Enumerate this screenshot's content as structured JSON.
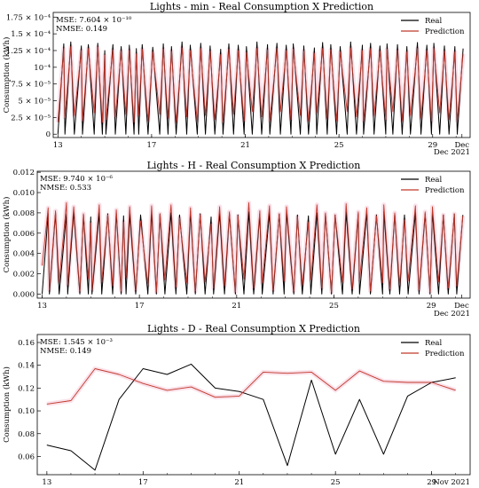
{
  "chart_data": [
    {
      "type": "line",
      "title": "Lights - min - Real Consumption X Prediction",
      "ylabel": "Consumption (kWh)",
      "xlabel": "",
      "x_ticks": [
        "13",
        "17",
        "21",
        "25",
        "29",
        "Dec"
      ],
      "x_sublabel": "Dec 2021",
      "x_domain": [
        12.8,
        30.6
      ],
      "y_ticks": [
        "0",
        "2.5 × 10⁻⁵",
        "5 × 10⁻⁵",
        "7.5 × 10⁻⁵",
        "10⁻⁴",
        "1.25 × 10⁻⁴",
        "1.5 × 10⁻⁴",
        "1.75 × 10⁻⁴"
      ],
      "y_tick_values": [
        0,
        2.5e-05,
        5e-05,
        7.5e-05,
        0.0001,
        0.000125,
        0.00015,
        0.000175
      ],
      "ylim": [
        -5e-06,
        0.000182
      ],
      "metrics": {
        "mse": "MSE: 7.604 × 10⁻¹⁰",
        "nmse": "NMSE: 0.149"
      },
      "legend_position": "top-right",
      "series": [
        {
          "name": "Real",
          "color": "#000000",
          "x": [
            13.0,
            13.25,
            13.3,
            13.55,
            13.7,
            14.0,
            14.05,
            14.3,
            14.55,
            14.7,
            14.9,
            15.0,
            15.05,
            15.35,
            15.45,
            15.7,
            15.9,
            16.05,
            16.25,
            16.35,
            16.45,
            16.6,
            16.85,
            17.05,
            17.35,
            17.5,
            17.7,
            17.85,
            18.05,
            18.3,
            18.5,
            18.65,
            18.95,
            19.1,
            19.3,
            19.5,
            19.7,
            19.95,
            20.05,
            20.3,
            20.5,
            20.7,
            20.95,
            21.05,
            21.3,
            21.5,
            21.7,
            21.95,
            22.05,
            22.35,
            22.5,
            22.75,
            22.95,
            23.05,
            23.35,
            23.5,
            23.7,
            23.95,
            24.05,
            24.3,
            24.5,
            24.65,
            24.9,
            25.05,
            25.35,
            25.5,
            25.75,
            26.0,
            26.05,
            26.35,
            26.5,
            26.75,
            27.0,
            27.05,
            27.3,
            27.5,
            27.7,
            27.9,
            28.05,
            28.35,
            28.5,
            28.75,
            28.95,
            29.05,
            29.3,
            29.5,
            29.7,
            29.95,
            30.05,
            30.3
          ],
          "y": [
            0,
            0.000135,
            0,
            0.000138,
            0,
            0.000132,
            0,
            0.000134,
            0,
            0.000136,
            0,
            0.000125,
            0,
            0.000134,
            0,
            0.000131,
            0,
            0.000133,
            0,
            0.000128,
            0,
            0.000134,
            0,
            0.00013,
            0,
            0.000135,
            0,
            0.000131,
            0,
            0.000138,
            0,
            0.000133,
            0,
            0.000136,
            0,
            0.000132,
            0,
            0.000127,
            0,
            0.000135,
            0,
            0.000133,
            0,
            0.000131,
            0,
            0.000138,
            0,
            0.000134,
            0,
            0.000136,
            0,
            0.000133,
            0,
            0.000135,
            0,
            0.000132,
            0,
            0.000129,
            0,
            0.000137,
            0,
            0.000134,
            0,
            0.000131,
            0,
            0.000138,
            0,
            0.000133,
            0,
            0.000136,
            0,
            0.000132,
            0,
            0.000135,
            0,
            0.000134,
            0,
            0.000131,
            0,
            0.000137,
            0,
            0.000133,
            0,
            0.000136,
            0,
            0.000132,
            0,
            0.000131,
            0,
            0.000128
          ]
        },
        {
          "name": "Prediction",
          "color": "#c0392b",
          "x": [
            13.0,
            13.25,
            13.3,
            13.55,
            13.7,
            14.0,
            14.05,
            14.3,
            14.55,
            14.7,
            14.9,
            15.0,
            15.05,
            15.35,
            15.45,
            15.7,
            15.9,
            16.05,
            16.25,
            16.35,
            16.45,
            16.6,
            16.85,
            17.05,
            17.35,
            17.5,
            17.7,
            17.85,
            18.05,
            18.3,
            18.5,
            18.65,
            18.95,
            19.1,
            19.3,
            19.5,
            19.7,
            19.95,
            20.05,
            20.3,
            20.5,
            20.7,
            20.95,
            21.05,
            21.3,
            21.5,
            21.7,
            21.95,
            22.05,
            22.35,
            22.5,
            22.75,
            22.95,
            23.05,
            23.35,
            23.5,
            23.7,
            23.95,
            24.05,
            24.3,
            24.5,
            24.65,
            24.9,
            25.05,
            25.35,
            25.5,
            25.75,
            26.0,
            26.05,
            26.35,
            26.5,
            26.75,
            27.0,
            27.05,
            27.3,
            27.5,
            27.7,
            27.9,
            28.05,
            28.35,
            28.5,
            28.75,
            28.95,
            29.05,
            29.3,
            29.5,
            29.7,
            29.95,
            30.05,
            30.3
          ],
          "y": [
            1.8e-05,
            0.000128,
            2.5e-05,
            0.000131,
            2.8e-05,
            0.000125,
            2e-05,
            0.000128,
            3.2e-05,
            0.00013,
            1.8e-05,
            0.000118,
            2.2e-05,
            0.000126,
            2.6e-05,
            0.000124,
            3e-05,
            0.000125,
            1.8e-05,
            0.00012,
            2.8e-05,
            0.000127,
            2e-05,
            0.000123,
            3e-05,
            0.000127,
            2.4e-05,
            0.000124,
            1.8e-05,
            0.000129,
            2.6e-05,
            0.000125,
            2e-05,
            0.000128,
            2.8e-05,
            0.000124,
            2.2e-05,
            0.000119,
            1.8e-05,
            0.000127,
            3e-05,
            0.000125,
            2e-05,
            0.000122,
            3.4e-05,
            0.000128,
            2.6e-05,
            0.000126,
            2e-05,
            0.000128,
            3.4e-05,
            0.000125,
            2.2e-05,
            0.000127,
            2.8e-05,
            0.000124,
            2e-05,
            0.000121,
            3.2e-05,
            0.000128,
            2.4e-05,
            0.000126,
            2e-05,
            0.000123,
            3.4e-05,
            0.000129,
            2.6e-05,
            0.000125,
            2e-05,
            0.000128,
            2.8e-05,
            0.000124,
            2.2e-05,
            0.000127,
            3.4e-05,
            0.000125,
            2e-05,
            0.000123,
            2.8e-05,
            0.000128,
            2.4e-05,
            0.000125,
            2e-05,
            0.000128,
            3.2e-05,
            0.000124,
            2.2e-05,
            0.000123,
            2e-05,
            0.00012
          ]
        }
      ]
    },
    {
      "type": "line",
      "title": "Lights - H - Real Consumption X Prediction",
      "ylabel": "Consumption (kWh)",
      "xlabel": "",
      "x_ticks": [
        "13",
        "17",
        "21",
        "25",
        "29",
        "Dec"
      ],
      "x_sublabel": "Dec 2021",
      "x_domain": [
        12.8,
        30.6
      ],
      "y_ticks": [
        "0.000",
        "0.002",
        "0.004",
        "0.006",
        "0.008",
        "0.010",
        "0.012"
      ],
      "y_tick_values": [
        0,
        0.002,
        0.004,
        0.006,
        0.008,
        0.01,
        0.012
      ],
      "ylim": [
        -0.0004,
        0.0121
      ],
      "metrics": {
        "mse": "MSE: 9.740 × 10⁻⁶",
        "nmse": "NMSE: 0.533"
      },
      "legend_position": "top-right",
      "series": [
        {
          "name": "Real",
          "color": "#000000",
          "x": [
            13.0,
            13.25,
            13.3,
            13.55,
            13.7,
            14.0,
            14.05,
            14.3,
            14.55,
            14.7,
            14.9,
            15.0,
            15.05,
            15.35,
            15.45,
            15.7,
            15.9,
            16.05,
            16.25,
            16.35,
            16.45,
            16.6,
            16.85,
            17.05,
            17.35,
            17.5,
            17.7,
            17.85,
            18.05,
            18.3,
            18.5,
            18.65,
            18.95,
            19.1,
            19.3,
            19.5,
            19.7,
            19.95,
            20.05,
            20.3,
            20.5,
            20.7,
            20.95,
            21.05,
            21.3,
            21.5,
            21.7,
            21.95,
            22.05,
            22.35,
            22.5,
            22.75,
            22.95,
            23.05,
            23.35,
            23.5,
            23.7,
            23.95,
            24.05,
            24.3,
            24.5,
            24.65,
            24.9,
            25.05,
            25.35,
            25.5,
            25.75,
            26.0,
            26.05,
            26.35,
            26.5,
            26.75,
            27.0,
            27.05,
            27.3,
            27.5,
            27.7,
            27.9,
            28.05,
            28.35,
            28.5,
            28.75,
            28.95,
            29.05,
            29.3,
            29.5,
            29.7,
            29.95,
            30.05,
            30.3
          ],
          "y": [
            0,
            0.0079,
            0,
            0.008,
            0,
            0.0079,
            0,
            0.0081,
            0,
            0.0078,
            0,
            0.0076,
            0,
            0.008,
            0,
            0.0079,
            0,
            0.008,
            0,
            0.0077,
            0,
            0.0079,
            0,
            0.0078,
            0,
            0.0081,
            0,
            0.0079,
            0,
            0.008,
            0,
            0.0078,
            0,
            0.0081,
            0,
            0.0079,
            0,
            0.0076,
            0,
            0.008,
            0,
            0.0079,
            0,
            0.0078,
            0,
            0.0081,
            0,
            0.0079,
            0,
            0.008,
            0,
            0.0079,
            0,
            0.0081,
            0,
            0.0078,
            0,
            0.0077,
            0,
            0.008,
            0,
            0.0079,
            0,
            0.0078,
            0,
            0.0081,
            0,
            0.0079,
            0,
            0.008,
            0,
            0.0078,
            0,
            0.0081,
            0,
            0.0079,
            0,
            0.0078,
            0,
            0.008,
            0,
            0.0079,
            0,
            0.0081,
            0,
            0.0078,
            0,
            0.0079,
            0,
            0.0078
          ]
        },
        {
          "name": "Prediction",
          "color": "#c0392b",
          "x": [
            13.0,
            13.25,
            13.3,
            13.55,
            13.7,
            14.0,
            14.05,
            14.3,
            14.55,
            14.7,
            14.9,
            15.0,
            15.05,
            15.35,
            15.45,
            15.7,
            15.9,
            16.05,
            16.25,
            16.35,
            16.45,
            16.6,
            16.85,
            17.05,
            17.35,
            17.5,
            17.7,
            17.85,
            18.05,
            18.3,
            18.5,
            18.65,
            18.95,
            19.1,
            19.3,
            19.5,
            19.7,
            19.95,
            20.05,
            20.3,
            20.5,
            20.7,
            20.95,
            21.05,
            21.3,
            21.5,
            21.7,
            21.95,
            22.05,
            22.35,
            22.5,
            22.75,
            22.95,
            23.05,
            23.35,
            23.5,
            23.7,
            23.95,
            24.05,
            24.3,
            24.5,
            24.65,
            24.9,
            25.05,
            25.35,
            25.5,
            25.75,
            26.0,
            26.05,
            26.35,
            26.5,
            26.75,
            27.0,
            27.05,
            27.3,
            27.5,
            27.7,
            27.9,
            28.05,
            28.35,
            28.5,
            28.75,
            28.95,
            29.05,
            29.3,
            29.5,
            29.7,
            29.95,
            30.05,
            30.3
          ],
          "y": [
            0.0028,
            0.0085,
            0.0004,
            0.0082,
            0.0012,
            0.009,
            0.0009,
            0.0086,
            0.0003,
            0.0079,
            0.0015,
            0.007,
            0.0004,
            0.0088,
            0.0012,
            0.0078,
            0.0008,
            0.0083,
            0.0003,
            0.0071,
            0.0016,
            0.0086,
            0.0004,
            0.0072,
            0.0009,
            0.0087,
            0.0002,
            0.0079,
            0.0014,
            0.0088,
            0.0007,
            0.0075,
            0.0011,
            0.0085,
            0.0003,
            0.0078,
            0.0012,
            0.0069,
            0.0006,
            0.0086,
            0.0008,
            0.0081,
            0.0002,
            0.0077,
            0.0015,
            0.009,
            0.0006,
            0.0082,
            0.0011,
            0.0087,
            0.0004,
            0.0079,
            0.0013,
            0.0086,
            0.0003,
            0.0076,
            0.0009,
            0.0071,
            0.0014,
            0.0088,
            0.0006,
            0.008,
            0.0002,
            0.0078,
            0.0012,
            0.0089,
            0.0005,
            0.0081,
            0.0014,
            0.0085,
            0.0003,
            0.0077,
            0.0011,
            0.0088,
            0.0005,
            0.008,
            0.0009,
            0.0073,
            0.0013,
            0.0087,
            0.0004,
            0.0081,
            0.0002,
            0.0086,
            0.0012,
            0.0078,
            0.0006,
            0.0079,
            0.0008,
            0.0077
          ]
        }
      ]
    },
    {
      "type": "line",
      "title": "Lights - D - Real Consumption X Prediction",
      "ylabel": "Consumption (kWh)",
      "xlabel": "",
      "x_ticks": [
        "13",
        "17",
        "21",
        "25",
        "29"
      ],
      "x_sublabel": "Nov 2021",
      "x_domain": [
        12.6,
        30.6
      ],
      "y_ticks": [
        "0.06",
        "0.08",
        "0.10",
        "0.12",
        "0.14",
        "0.16"
      ],
      "y_tick_values": [
        0.06,
        0.08,
        0.1,
        0.12,
        0.14,
        0.16
      ],
      "ylim": [
        0.044,
        0.167
      ],
      "metrics": {
        "mse": "MSE: 1.545 × 10⁻³",
        "nmse": "NMSE: 0.149"
      },
      "legend_position": "top-right",
      "series": [
        {
          "name": "Real",
          "color": "#000000",
          "x": [
            13,
            14,
            15,
            16,
            17,
            18,
            19,
            20,
            21,
            22,
            23,
            24,
            25,
            26,
            27,
            28,
            29,
            30
          ],
          "y": [
            0.07,
            0.065,
            0.048,
            0.11,
            0.137,
            0.132,
            0.141,
            0.12,
            0.117,
            0.11,
            0.052,
            0.127,
            0.062,
            0.11,
            0.062,
            0.113,
            0.125,
            0.129
          ]
        },
        {
          "name": "Prediction",
          "color": "#c0392b",
          "x": [
            13,
            14,
            15,
            16,
            17,
            18,
            19,
            20,
            21,
            22,
            23,
            24,
            25,
            26,
            27,
            28,
            29,
            30
          ],
          "y": [
            0.106,
            0.109,
            0.137,
            0.132,
            0.124,
            0.118,
            0.121,
            0.112,
            0.113,
            0.134,
            0.133,
            0.134,
            0.118,
            0.135,
            0.126,
            0.125,
            0.125,
            0.118
          ]
        }
      ]
    }
  ]
}
